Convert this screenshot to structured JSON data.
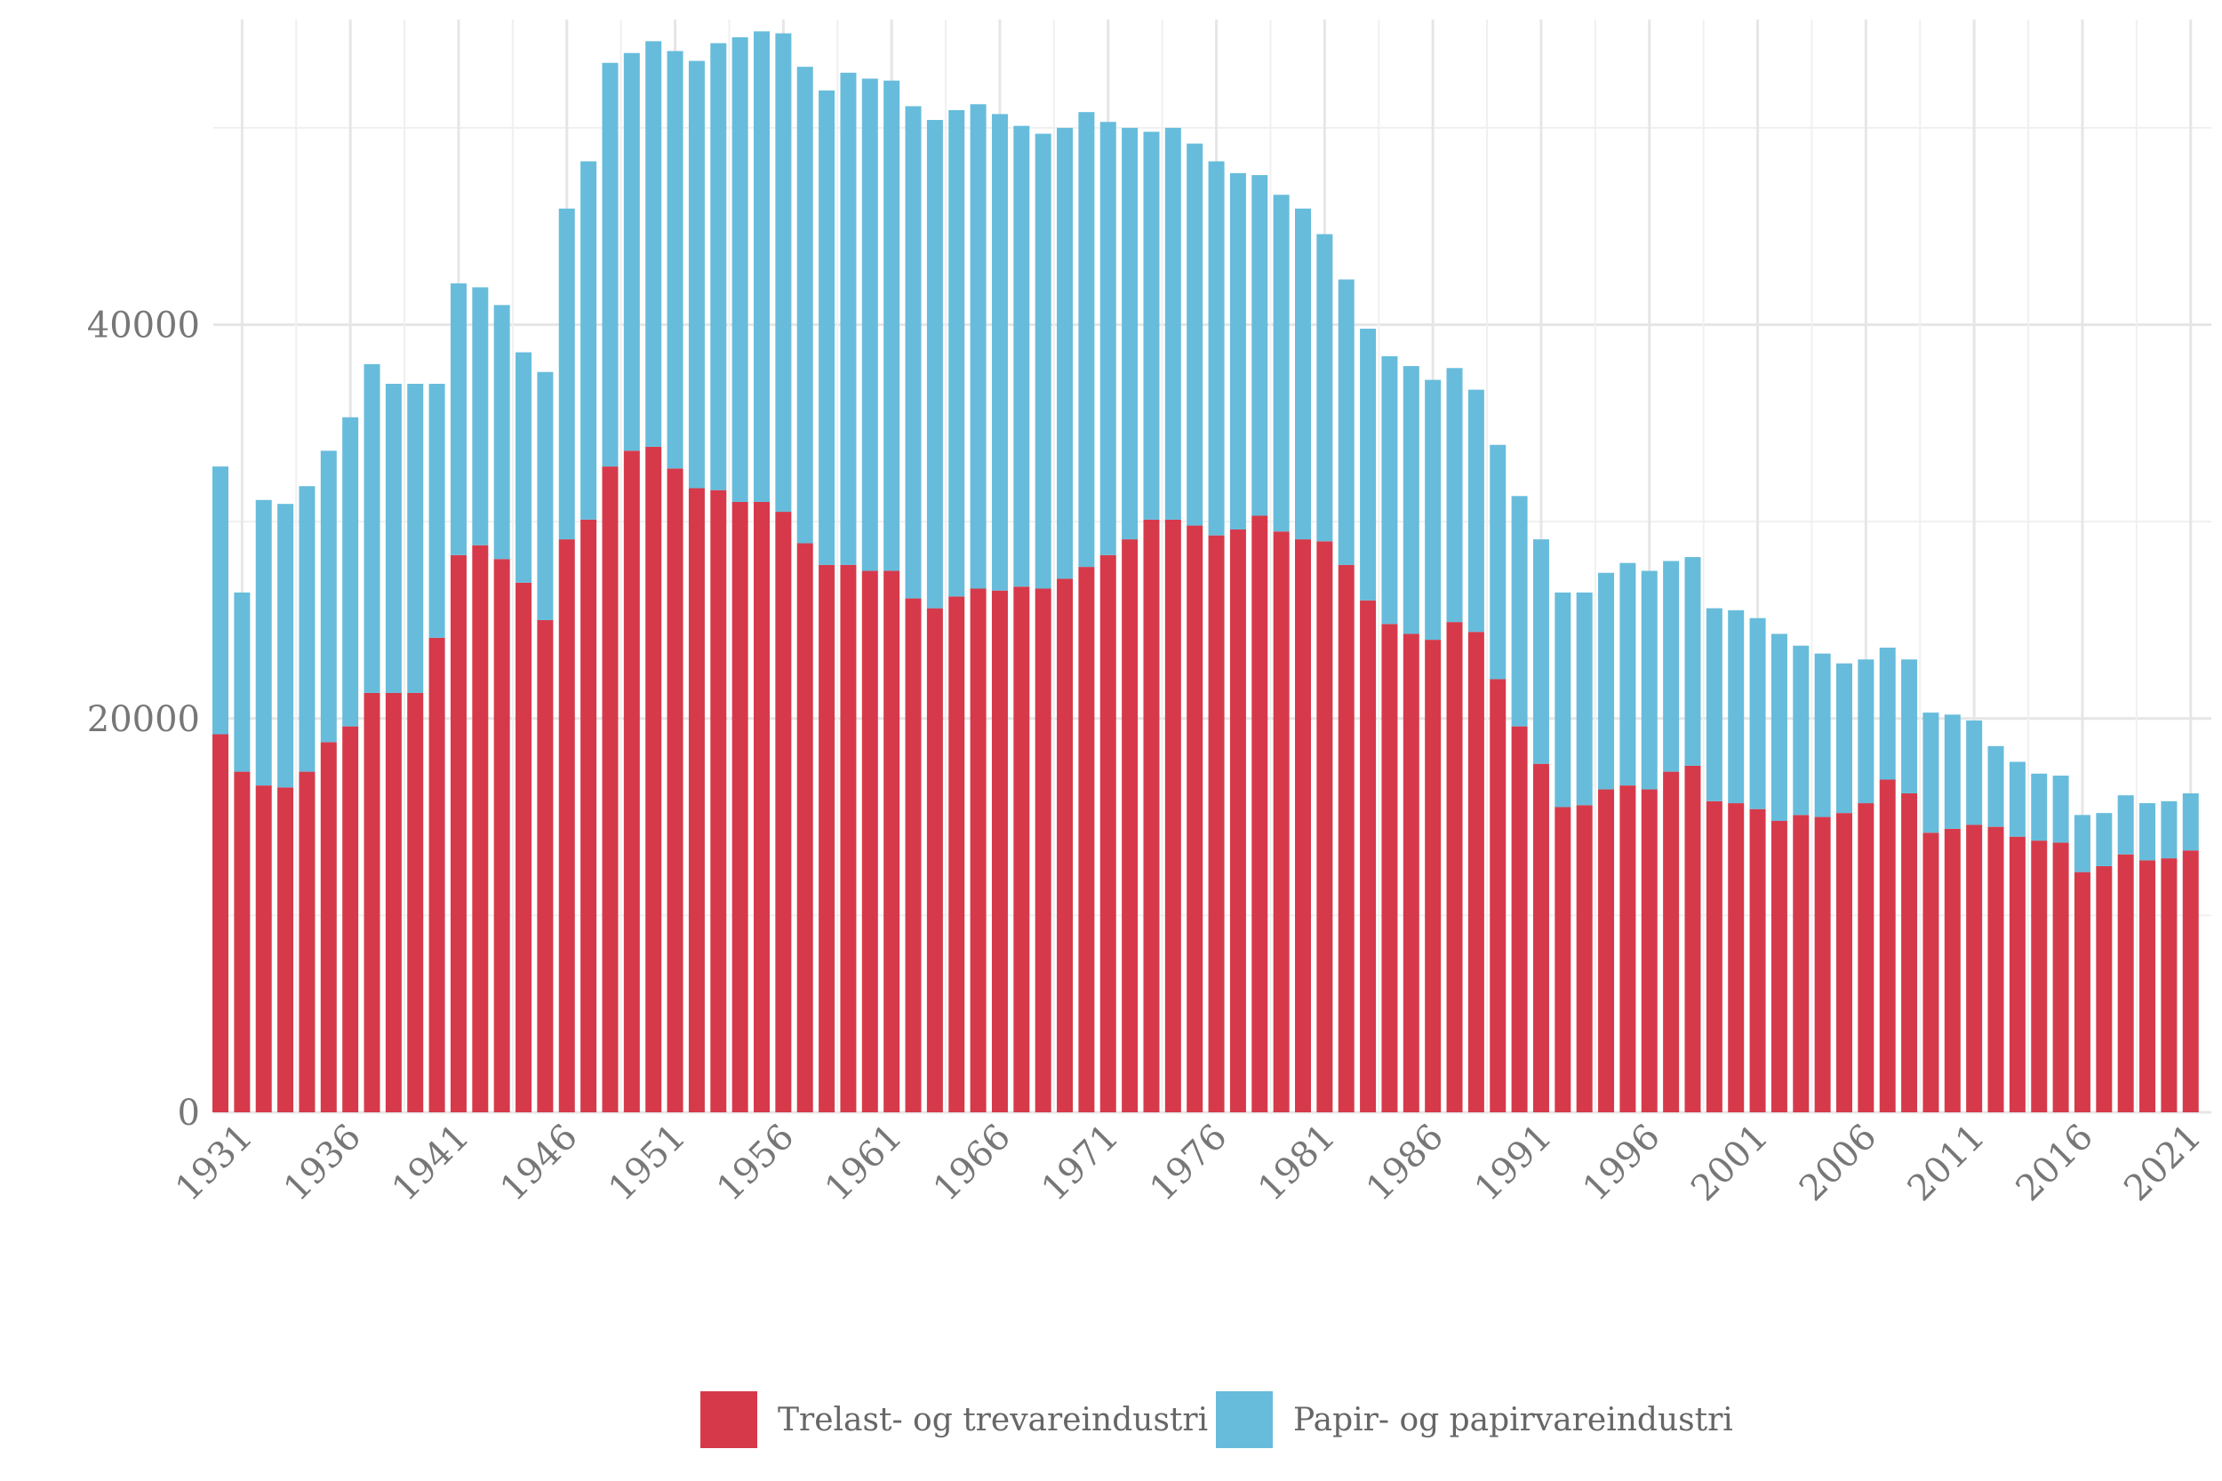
{
  "chart_data": {
    "type": "bar",
    "stacked": true,
    "title": "",
    "xlabel": "",
    "ylabel": "",
    "ylim": [
      0,
      55500
    ],
    "y_ticks": [
      0,
      20000,
      40000
    ],
    "x_tick_labels": [
      "1931",
      "1936",
      "1941",
      "1946",
      "1951",
      "1956",
      "1961",
      "1966",
      "1971",
      "1976",
      "1981",
      "1986",
      "1991",
      "1996",
      "2001",
      "2006",
      "2011",
      "2016",
      "2021"
    ],
    "categories": [
      1930,
      1931,
      1932,
      1933,
      1934,
      1935,
      1936,
      1937,
      1938,
      1939,
      1940,
      1941,
      1942,
      1943,
      1944,
      1945,
      1946,
      1947,
      1948,
      1949,
      1950,
      1951,
      1952,
      1953,
      1954,
      1955,
      1956,
      1957,
      1958,
      1959,
      1960,
      1961,
      1962,
      1963,
      1964,
      1965,
      1966,
      1967,
      1968,
      1969,
      1970,
      1971,
      1972,
      1973,
      1974,
      1975,
      1976,
      1977,
      1978,
      1979,
      1980,
      1981,
      1982,
      1983,
      1984,
      1985,
      1986,
      1987,
      1988,
      1989,
      1990,
      1991,
      1992,
      1993,
      1994,
      1995,
      1996,
      1997,
      1998,
      1999,
      2000,
      2001,
      2002,
      2003,
      2004,
      2005,
      2006,
      2007,
      2008,
      2009,
      2010,
      2011,
      2012,
      2013,
      2014,
      2015,
      2016,
      2017,
      2018,
      2019,
      2020,
      2021
    ],
    "series": [
      {
        "name": "Trelast- og trevareindustri",
        "color": "#d63a4a",
        "values": [
          19200,
          17300,
          16600,
          16500,
          17300,
          18800,
          19600,
          21300,
          21300,
          21300,
          24100,
          28300,
          28800,
          28100,
          26900,
          25000,
          29100,
          30100,
          32800,
          33600,
          33800,
          32700,
          31700,
          31600,
          31000,
          31000,
          30500,
          28900,
          27800,
          27800,
          27500,
          27500,
          26100,
          25600,
          26200,
          26600,
          26500,
          26700,
          26600,
          27100,
          27700,
          28300,
          29100,
          30100,
          30100,
          29800,
          29300,
          29600,
          30300,
          29500,
          29100,
          29000,
          27800,
          26000,
          24800,
          24300,
          24000,
          24900,
          24400,
          22000,
          19600,
          17700,
          15500,
          15600,
          16400,
          16600,
          16400,
          17300,
          17600,
          15800,
          15700,
          15400,
          14800,
          15100,
          15000,
          15200,
          15700,
          16900,
          16200,
          14200,
          14400,
          14600,
          14500,
          14000,
          13800,
          13700,
          12200,
          12500,
          13100,
          12800,
          12900,
          13300
        ]
      },
      {
        "name": "Papir- og papirvareindustri",
        "color": "#67bcdb",
        "values": [
          13600,
          9100,
          14500,
          14400,
          14500,
          14800,
          15700,
          16700,
          15700,
          15700,
          12900,
          13800,
          13100,
          12900,
          11700,
          12600,
          16800,
          18200,
          20500,
          20200,
          20600,
          21200,
          21700,
          22700,
          23600,
          23900,
          24300,
          24200,
          24100,
          25000,
          25000,
          24900,
          25000,
          24800,
          24700,
          24600,
          24200,
          23400,
          23100,
          22900,
          23100,
          22000,
          20900,
          19700,
          19900,
          19400,
          19000,
          18100,
          17300,
          17100,
          16800,
          15600,
          14500,
          13800,
          13600,
          13600,
          13200,
          12900,
          12300,
          11900,
          11700,
          11400,
          10900,
          10800,
          11000,
          11300,
          11100,
          10700,
          10600,
          9800,
          9800,
          9700,
          9500,
          8600,
          8300,
          7600,
          7300,
          6700,
          6800,
          6100,
          5800,
          5300,
          4100,
          3800,
          3400,
          3400,
          2900,
          2700,
          3000,
          2900,
          2900,
          2900
        ]
      }
    ],
    "legend": {
      "position": "bottom",
      "items": [
        {
          "label": "Trelast- og trevareindustri",
          "color": "#d63a4a"
        },
        {
          "label": "Papir- og papirvareindustri",
          "color": "#67bcdb"
        }
      ]
    },
    "grid": true
  }
}
